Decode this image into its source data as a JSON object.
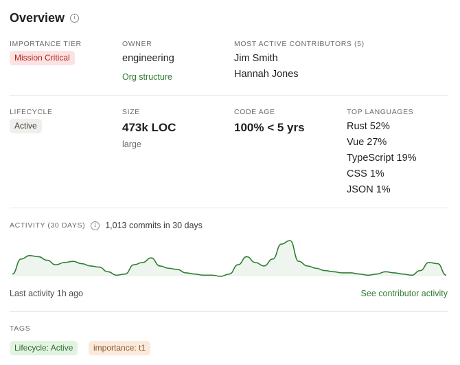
{
  "title": "Overview",
  "importance": {
    "label": "IMPORTANCE TIER",
    "value": "Mission Critical"
  },
  "owner": {
    "label": "OWNER",
    "value": "engineering",
    "link": "Org structure"
  },
  "contributors": {
    "label": "MOST ACTIVE CONTRIBUTORS (5)",
    "names": [
      "Jim Smith",
      "Hannah Jones"
    ]
  },
  "lifecycle": {
    "label": "LIFECYCLE",
    "value": "Active"
  },
  "size": {
    "label": "SIZE",
    "value": "473k LOC",
    "note": "large"
  },
  "code_age": {
    "label": "CODE AGE",
    "value": "100% < 5 yrs"
  },
  "languages": {
    "label": "TOP LANGUAGES",
    "items": [
      "Rust 52%",
      "Vue 27%",
      "TypeScript 19%",
      "CSS 1%",
      "JSON 1%"
    ]
  },
  "activity": {
    "label": "ACTIVITY (30 DAYS)",
    "commits": "1,013 commits in 30 days",
    "last": "Last activity 1h ago",
    "link": "See contributor activity",
    "line_color": "#2f7d32",
    "fill_color": "#eef4ee",
    "series": [
      2,
      15,
      18,
      17,
      14,
      10,
      12,
      13,
      11,
      9,
      8,
      4,
      1,
      2,
      10,
      12,
      16,
      9,
      7,
      6,
      3,
      2,
      1,
      1,
      0,
      2,
      10,
      17,
      12,
      9,
      15,
      28,
      31,
      13,
      9,
      7,
      5,
      4,
      3,
      3,
      2,
      1,
      2,
      4,
      3,
      2,
      1,
      5,
      12,
      11,
      1
    ]
  },
  "tags": {
    "label": "TAGS",
    "items": [
      "Lifecycle: Active",
      "importance: t1"
    ]
  }
}
